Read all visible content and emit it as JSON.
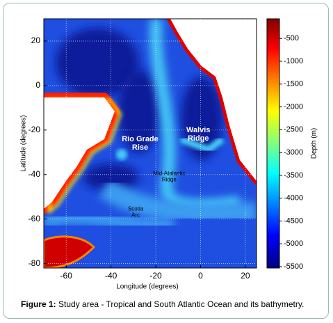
{
  "figure": {
    "xlabel": "Longitude (degrees)",
    "ylabel": "Latitude (degrees)",
    "xlim": [
      -70,
      25
    ],
    "ylim": [
      -82,
      30
    ],
    "xticks": [
      -60,
      -40,
      -20,
      0,
      20
    ],
    "yticks": [
      -80,
      -60,
      -40,
      -20,
      0,
      20
    ],
    "grid": true,
    "colorbar": {
      "label": "Depth (m)",
      "lim": [
        -5530,
        -70
      ],
      "ticks": [
        -500,
        -1000,
        -1500,
        -2000,
        -2500,
        -3000,
        -3500,
        -4000,
        -4500,
        -5000,
        -5500
      ]
    },
    "annotations": [
      {
        "lines": [
          "Rio Grade",
          "Rise"
        ],
        "x": -27,
        "y": -26
      },
      {
        "lines": [
          "Walvis",
          "Ridge"
        ],
        "x": -1,
        "y": -22
      },
      {
        "lines": [
          "Mid-Atalantic",
          "Ridge"
        ],
        "x": -14,
        "y": -41
      },
      {
        "lines": [
          "Scotia",
          "Arc"
        ],
        "x": -29,
        "y": -57
      }
    ],
    "caption": {
      "label": "Figure 1:",
      "text": " Study area - Tropical and South Atlantic Ocean and its bathymetry."
    }
  }
}
